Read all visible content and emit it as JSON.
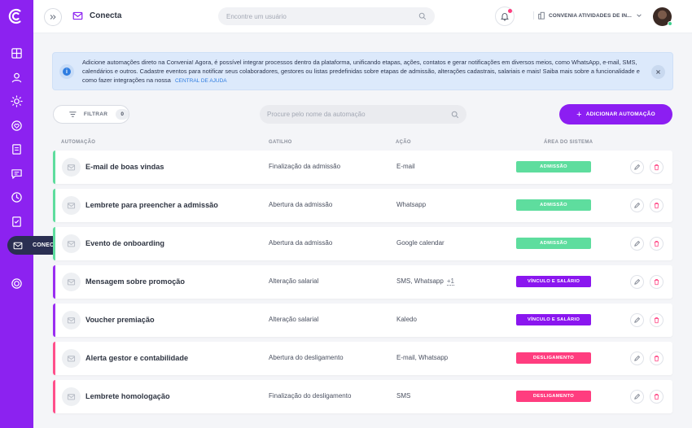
{
  "header": {
    "app_title": "Conecta",
    "search_placeholder": "Encontre um usuário",
    "company": "CONVENIA ATIVIDADES DE IN..."
  },
  "sidebar": {
    "active_label": "CONECTA"
  },
  "banner": {
    "text": "Adicione automações direto na Convenia! Agora, é possível integrar processos dentro da plataforma, unificando etapas, ações, contatos e gerar notificações em diversos meios, como WhatsApp, e-mail, SMS, calendários e outros. Cadastre eventos para notificar seus colaboradores, gestores ou listas predefinidas sobre etapas de admissão, alterações cadastrais, salariais e mais! Saiba mais sobre a funcionalidade e como fazer integrações na nossa",
    "link": "CENTRAL DE AJUDA"
  },
  "toolbar": {
    "filter_label": "FILTRAR",
    "filter_count": "0",
    "search_placeholder": "Procure pelo nome da automação",
    "add_label": "ADICIONAR AUTOMAÇÃO"
  },
  "table": {
    "columns": [
      "AUTOMAÇÃO",
      "GATILHO",
      "AÇÃO",
      "ÁREA DO SISTEMA"
    ],
    "rows": [
      {
        "name": "E-mail de boas vindas",
        "trigger": "Finalização da admissão",
        "action": "E-mail",
        "extra": "",
        "area": "ADMISSÃO",
        "color": "green"
      },
      {
        "name": "Lembrete para preencher a admissão",
        "trigger": "Abertura da admissão",
        "action": "Whatsapp",
        "extra": "",
        "area": "ADMISSÃO",
        "color": "green"
      },
      {
        "name": "Evento de onboarding",
        "trigger": "Abertura da admissão",
        "action": "Google calendar",
        "extra": "",
        "area": "ADMISSÃO",
        "color": "green"
      },
      {
        "name": "Mensagem sobre promoção",
        "trigger": "Alteração salarial",
        "action": "SMS, Whatsapp",
        "extra": "+1",
        "area": "VÍNCULO E SALÁRIO",
        "color": "purple"
      },
      {
        "name": "Voucher premiação",
        "trigger": "Alteração salarial",
        "action": "Kaledo",
        "extra": "",
        "area": "VÍNCULO E SALÁRIO",
        "color": "purple"
      },
      {
        "name": "Alerta gestor e contabilidade",
        "trigger": "Abertura do desligamento",
        "action": "E-mail, Whatsapp",
        "extra": "",
        "area": "DESLIGAMENTO",
        "color": "pink"
      },
      {
        "name": "Lembrete homologação",
        "trigger": "Finalização do desligamento",
        "action": "SMS",
        "extra": "",
        "area": "DESLIGAMENTO",
        "color": "pink"
      }
    ]
  },
  "colors": {
    "brand": "#8c22f0",
    "admissao": "#5edd9e",
    "vinculo": "#8a16ef",
    "desligamento": "#ff3d7f"
  }
}
